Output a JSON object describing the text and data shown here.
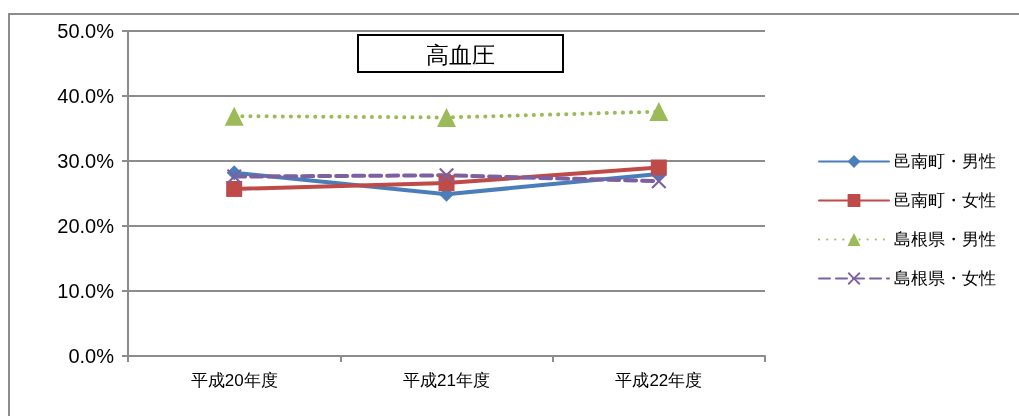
{
  "chart_data": {
    "type": "line",
    "title": "高血圧",
    "categories": [
      "平成20年度",
      "平成21年度",
      "平成22年度"
    ],
    "series": [
      {
        "name": "邑南町・男性",
        "color": "#4a7ebb",
        "marker": "diamond",
        "line_style": "solid",
        "values": [
          28.2,
          24.9,
          28.0
        ]
      },
      {
        "name": "邑南町・女性",
        "color": "#be4b48",
        "marker": "square",
        "line_style": "solid",
        "values": [
          25.7,
          26.6,
          29.0
        ]
      },
      {
        "name": "島根県・男性",
        "color": "#9bbb59",
        "marker": "triangle",
        "line_style": "dotted",
        "values": [
          36.9,
          36.7,
          37.6
        ]
      },
      {
        "name": "島根県・女性",
        "color": "#7d60a0",
        "marker": "cross",
        "line_style": "dashed",
        "values": [
          27.6,
          27.8,
          26.9
        ]
      }
    ],
    "ylim": [
      0,
      50
    ],
    "yticks": [
      {
        "value": 0,
        "label": "0.0%"
      },
      {
        "value": 10,
        "label": "10.0%"
      },
      {
        "value": 20,
        "label": "20.0%"
      },
      {
        "value": 30,
        "label": "30.0%"
      },
      {
        "value": 40,
        "label": "40.0%"
      },
      {
        "value": 50,
        "label": "50.0%"
      }
    ],
    "grid": "y",
    "legend": "right"
  }
}
